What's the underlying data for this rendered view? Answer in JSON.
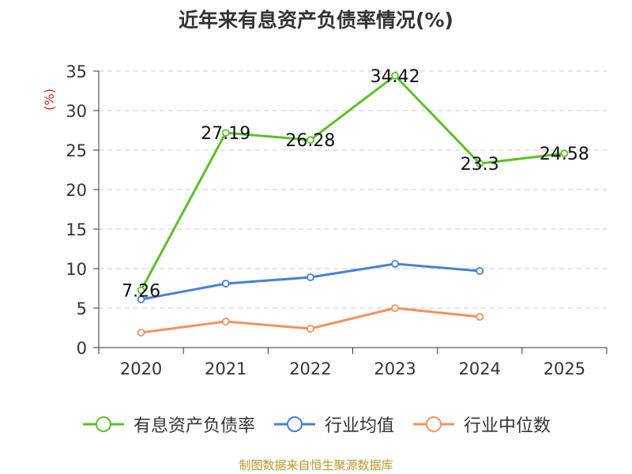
{
  "chart_data": {
    "type": "line",
    "title": "近年来有息资产负债率情况(%)",
    "ylabel": "(%)",
    "categories": [
      "2020",
      "2021",
      "2022",
      "2023",
      "2024",
      "2025"
    ],
    "ylim": [
      0,
      35
    ],
    "yticks": [
      0,
      5,
      10,
      15,
      20,
      25,
      30,
      35
    ],
    "grid": true,
    "legend_position": "bottom",
    "series": [
      {
        "name": "有息资产负债率",
        "color": "#5dbf2a",
        "values": [
          7.26,
          27.19,
          26.28,
          34.42,
          23.3,
          24.58
        ],
        "labels": [
          "7.26",
          "27.19",
          "26.28",
          "34.42",
          "23.3",
          "24.58"
        ]
      },
      {
        "name": "行业均值",
        "color": "#4a7fd6",
        "values": [
          6.1,
          8.1,
          8.9,
          10.6,
          9.7,
          null
        ]
      },
      {
        "name": "行业中位数",
        "color": "#f5915b",
        "values": [
          1.9,
          3.3,
          2.4,
          5.0,
          3.9,
          null
        ]
      }
    ]
  },
  "footer": {
    "source": "制图数据来自恒生聚源数据库"
  }
}
